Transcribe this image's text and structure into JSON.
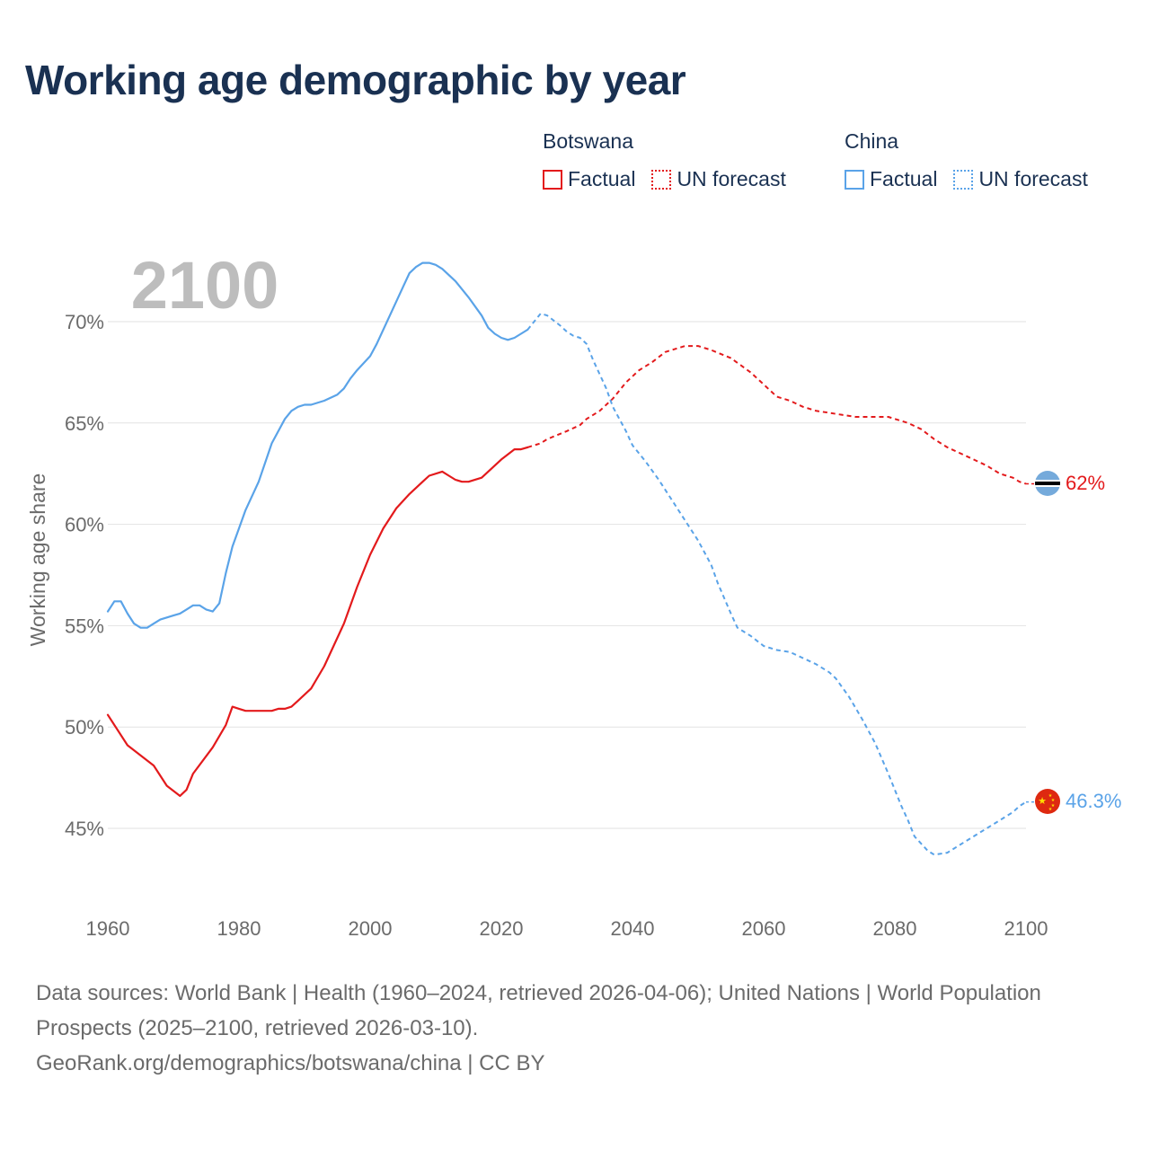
{
  "title": "Working age demographic by year",
  "legend": {
    "groups": [
      {
        "country": "Botswana",
        "color": "#e31a1c",
        "factual_label": "Factual",
        "forecast_label": "UN forecast"
      },
      {
        "country": "China",
        "color": "#5aa3e8",
        "factual_label": "Factual",
        "forecast_label": "UN forecast"
      }
    ]
  },
  "chart_data": {
    "type": "line",
    "title": "Working age demographic by year",
    "year_label": "2100",
    "xlabel": "",
    "ylabel": "Working age share",
    "xlim": [
      1960,
      2100
    ],
    "ylim": [
      42,
      74
    ],
    "x_ticks": [
      1960,
      1980,
      2000,
      2020,
      2040,
      2060,
      2080,
      2100
    ],
    "y_ticks": [
      45,
      50,
      55,
      60,
      65,
      70
    ],
    "y_tick_labels": [
      "45%",
      "50%",
      "55%",
      "60%",
      "65%",
      "70%"
    ],
    "grid": true,
    "series": [
      {
        "name": "Botswana",
        "color": "#e31a1c",
        "end_label": "62%",
        "end_value": 62,
        "factual_years": [
          1960,
          2024
        ],
        "forecast_years": [
          2025,
          2100
        ],
        "points": [
          [
            1960,
            50.6
          ],
          [
            1963,
            49.1
          ],
          [
            1967,
            48.1
          ],
          [
            1969,
            47.1
          ],
          [
            1971,
            46.6
          ],
          [
            1972,
            46.9
          ],
          [
            1973,
            47.7
          ],
          [
            1976,
            49.0
          ],
          [
            1978,
            50.1
          ],
          [
            1979,
            51.0
          ],
          [
            1980,
            50.9
          ],
          [
            1981,
            50.8
          ],
          [
            1985,
            50.8
          ],
          [
            1986,
            50.9
          ],
          [
            1987,
            50.9
          ],
          [
            1988,
            51.0
          ],
          [
            1989,
            51.3
          ],
          [
            1991,
            51.9
          ],
          [
            1993,
            53.0
          ],
          [
            1996,
            55.1
          ],
          [
            1998,
            56.9
          ],
          [
            2000,
            58.5
          ],
          [
            2002,
            59.8
          ],
          [
            2004,
            60.8
          ],
          [
            2006,
            61.5
          ],
          [
            2008,
            62.1
          ],
          [
            2009,
            62.4
          ],
          [
            2011,
            62.6
          ],
          [
            2012,
            62.4
          ],
          [
            2013,
            62.2
          ],
          [
            2014,
            62.1
          ],
          [
            2015,
            62.1
          ],
          [
            2017,
            62.3
          ],
          [
            2020,
            63.2
          ],
          [
            2022,
            63.7
          ],
          [
            2023,
            63.7
          ],
          [
            2024,
            63.8
          ],
          [
            2026,
            64.0
          ],
          [
            2027,
            64.2
          ],
          [
            2030,
            64.6
          ],
          [
            2032,
            64.9
          ],
          [
            2033,
            65.2
          ],
          [
            2035,
            65.6
          ],
          [
            2037,
            66.2
          ],
          [
            2039,
            67.0
          ],
          [
            2041,
            67.6
          ],
          [
            2043,
            68.0
          ],
          [
            2045,
            68.5
          ],
          [
            2048,
            68.8
          ],
          [
            2050,
            68.8
          ],
          [
            2052,
            68.6
          ],
          [
            2055,
            68.2
          ],
          [
            2058,
            67.5
          ],
          [
            2060,
            66.9
          ],
          [
            2062,
            66.3
          ],
          [
            2064,
            66.1
          ],
          [
            2066,
            65.8
          ],
          [
            2068,
            65.6
          ],
          [
            2070,
            65.5
          ],
          [
            2072,
            65.4
          ],
          [
            2074,
            65.3
          ],
          [
            2079,
            65.3
          ],
          [
            2080,
            65.2
          ],
          [
            2082,
            65.0
          ],
          [
            2084,
            64.7
          ],
          [
            2086,
            64.2
          ],
          [
            2088,
            63.8
          ],
          [
            2090,
            63.5
          ],
          [
            2092,
            63.2
          ],
          [
            2094,
            62.9
          ],
          [
            2096,
            62.5
          ],
          [
            2098,
            62.3
          ],
          [
            2099,
            62.1
          ],
          [
            2100,
            62.0
          ]
        ]
      },
      {
        "name": "China",
        "color": "#5aa3e8",
        "end_label": "46.3%",
        "end_value": 46.3,
        "factual_years": [
          1960,
          2024
        ],
        "forecast_years": [
          2025,
          2100
        ],
        "points": [
          [
            1960,
            55.7
          ],
          [
            1961,
            56.2
          ],
          [
            1962,
            56.2
          ],
          [
            1963,
            55.6
          ],
          [
            1964,
            55.1
          ],
          [
            1965,
            54.9
          ],
          [
            1966,
            54.9
          ],
          [
            1967,
            55.1
          ],
          [
            1968,
            55.3
          ],
          [
            1970,
            55.5
          ],
          [
            1971,
            55.6
          ],
          [
            1972,
            55.8
          ],
          [
            1973,
            56.0
          ],
          [
            1974,
            56.0
          ],
          [
            1975,
            55.8
          ],
          [
            1976,
            55.7
          ],
          [
            1977,
            56.1
          ],
          [
            1978,
            57.6
          ],
          [
            1979,
            58.9
          ],
          [
            1980,
            59.8
          ],
          [
            1981,
            60.7
          ],
          [
            1983,
            62.1
          ],
          [
            1985,
            64.0
          ],
          [
            1987,
            65.2
          ],
          [
            1988,
            65.6
          ],
          [
            1989,
            65.8
          ],
          [
            1990,
            65.9
          ],
          [
            1991,
            65.9
          ],
          [
            1993,
            66.1
          ],
          [
            1995,
            66.4
          ],
          [
            1996,
            66.7
          ],
          [
            1997,
            67.2
          ],
          [
            1998,
            67.6
          ],
          [
            2000,
            68.3
          ],
          [
            2001,
            68.9
          ],
          [
            2003,
            70.3
          ],
          [
            2005,
            71.7
          ],
          [
            2006,
            72.4
          ],
          [
            2007,
            72.7
          ],
          [
            2008,
            72.9
          ],
          [
            2009,
            72.9
          ],
          [
            2010,
            72.8
          ],
          [
            2011,
            72.6
          ],
          [
            2013,
            72.0
          ],
          [
            2015,
            71.2
          ],
          [
            2017,
            70.3
          ],
          [
            2018,
            69.7
          ],
          [
            2019,
            69.4
          ],
          [
            2020,
            69.2
          ],
          [
            2021,
            69.1
          ],
          [
            2022,
            69.2
          ],
          [
            2023,
            69.4
          ],
          [
            2024,
            69.6
          ],
          [
            2025,
            70.0
          ],
          [
            2026,
            70.4
          ],
          [
            2027,
            70.3
          ],
          [
            2029,
            69.8
          ],
          [
            2030,
            69.5
          ],
          [
            2031,
            69.3
          ],
          [
            2032,
            69.2
          ],
          [
            2033,
            68.9
          ],
          [
            2034,
            68.1
          ],
          [
            2036,
            66.7
          ],
          [
            2037,
            65.8
          ],
          [
            2039,
            64.6
          ],
          [
            2040,
            63.9
          ],
          [
            2042,
            63.1
          ],
          [
            2044,
            62.2
          ],
          [
            2046,
            61.2
          ],
          [
            2048,
            60.2
          ],
          [
            2050,
            59.2
          ],
          [
            2052,
            58.0
          ],
          [
            2053,
            57.1
          ],
          [
            2055,
            55.6
          ],
          [
            2056,
            54.9
          ],
          [
            2058,
            54.5
          ],
          [
            2060,
            54.0
          ],
          [
            2062,
            53.8
          ],
          [
            2064,
            53.7
          ],
          [
            2066,
            53.4
          ],
          [
            2068,
            53.1
          ],
          [
            2070,
            52.7
          ],
          [
            2071,
            52.4
          ],
          [
            2073,
            51.5
          ],
          [
            2075,
            50.4
          ],
          [
            2077,
            49.2
          ],
          [
            2079,
            47.7
          ],
          [
            2081,
            46.1
          ],
          [
            2082,
            45.4
          ],
          [
            2083,
            44.6
          ],
          [
            2085,
            43.9
          ],
          [
            2086,
            43.7
          ],
          [
            2088,
            43.8
          ],
          [
            2090,
            44.2
          ],
          [
            2092,
            44.6
          ],
          [
            2094,
            45.0
          ],
          [
            2096,
            45.4
          ],
          [
            2098,
            45.8
          ],
          [
            2099,
            46.1
          ],
          [
            2100,
            46.3
          ]
        ]
      }
    ],
    "end_markers": [
      {
        "series": "Botswana",
        "flag": "botswana-flag-icon"
      },
      {
        "series": "China",
        "flag": "china-flag-icon"
      }
    ]
  },
  "footer": {
    "sources": "Data sources: World Bank | Health (1960–2024, retrieved 2026-04-06); United Nations | World Population Prospects (2025–2100, retrieved 2026-03-10).",
    "attribution": "GeoRank.org/demographics/botswana/china | CC BY"
  }
}
